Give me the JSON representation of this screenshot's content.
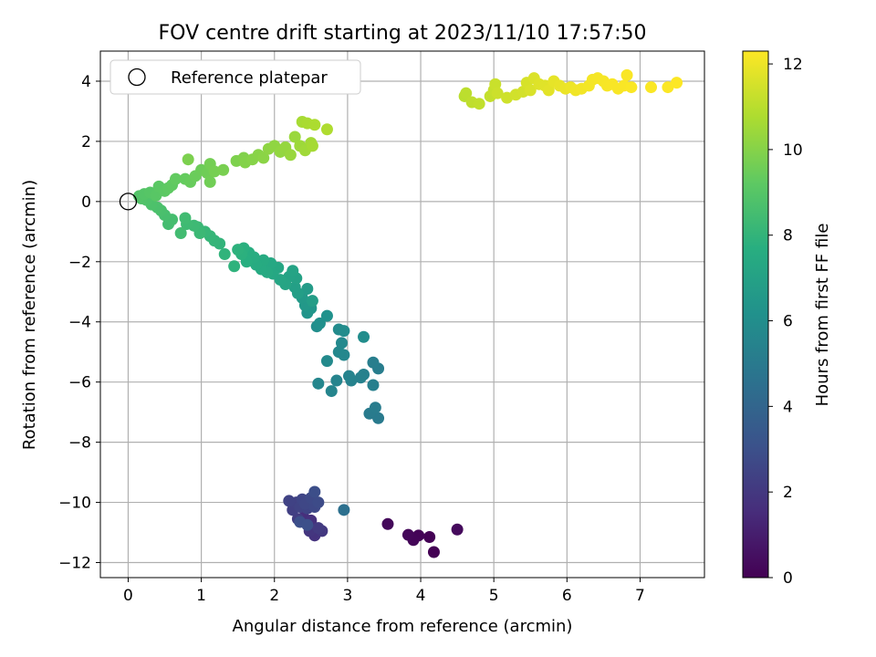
{
  "chart_data": {
    "type": "scatter",
    "title": "FOV centre drift starting at 2023/11/10 17:57:50",
    "xlabel": "Angular distance from reference (arcmin)",
    "ylabel": "Rotation from reference (arcmin)",
    "xlim": [
      -0.38,
      7.88
    ],
    "ylim": [
      -12.5,
      5.0
    ],
    "xticks": [
      "0",
      "1",
      "2",
      "3",
      "4",
      "5",
      "6",
      "7"
    ],
    "yticks": [
      "4",
      "2",
      "0",
      "−2",
      "−4",
      "−6",
      "−8",
      "−10",
      "−12"
    ],
    "grid": true,
    "legend": {
      "location": "upper-left",
      "entries": [
        "Reference platepar"
      ]
    },
    "reference_point": {
      "x": 0.0,
      "y": 0.0,
      "marker": "open-circle"
    },
    "colorbar": {
      "label": "Hours from first FF file",
      "range": [
        0,
        12.3
      ],
      "ticks": [
        "0",
        "2",
        "4",
        "6",
        "8",
        "10",
        "12"
      ],
      "colormap": "viridis"
    },
    "series": [
      {
        "points": [
          [
            4.18,
            -11.65,
            0.0
          ],
          [
            4.12,
            -11.15,
            0.05
          ],
          [
            3.97,
            -11.1,
            0.1
          ],
          [
            3.9,
            -11.25,
            0.15
          ],
          [
            3.83,
            -11.08,
            0.2
          ],
          [
            3.55,
            -10.72,
            0.25
          ],
          [
            4.5,
            -10.9,
            0.3
          ],
          [
            2.4,
            -10.5,
            1.6
          ],
          [
            2.5,
            -10.6,
            1.7
          ],
          [
            2.55,
            -11.1,
            1.8
          ],
          [
            2.48,
            -10.95,
            1.9
          ],
          [
            2.65,
            -10.95,
            2.0
          ],
          [
            2.6,
            -10.85,
            2.1
          ],
          [
            2.32,
            -10.55,
            2.2
          ],
          [
            2.25,
            -10.25,
            2.3
          ],
          [
            2.3,
            -10.0,
            2.35
          ],
          [
            2.2,
            -9.95,
            2.4
          ],
          [
            2.35,
            -10.15,
            2.45
          ],
          [
            2.45,
            -10.2,
            2.5
          ],
          [
            2.38,
            -9.9,
            2.55
          ],
          [
            2.42,
            -10.05,
            2.6
          ],
          [
            2.55,
            -10.15,
            2.65
          ],
          [
            2.5,
            -9.85,
            2.7
          ],
          [
            2.6,
            -10.0,
            2.8
          ],
          [
            2.55,
            -9.65,
            2.9
          ],
          [
            2.35,
            -10.65,
            2.95
          ],
          [
            2.45,
            -10.75,
            3.0
          ],
          [
            2.95,
            -10.25,
            4.5
          ],
          [
            3.42,
            -7.2,
            5.0
          ],
          [
            3.3,
            -7.05,
            5.05
          ],
          [
            3.38,
            -6.85,
            5.1
          ],
          [
            3.42,
            -5.55,
            5.15
          ],
          [
            3.35,
            -5.35,
            5.2
          ],
          [
            3.35,
            -6.1,
            5.25
          ],
          [
            3.22,
            -5.75,
            5.3
          ],
          [
            3.18,
            -5.85,
            5.35
          ],
          [
            3.05,
            -5.95,
            5.4
          ],
          [
            3.02,
            -5.8,
            5.45
          ],
          [
            2.85,
            -5.95,
            5.5
          ],
          [
            2.78,
            -6.3,
            5.55
          ],
          [
            2.6,
            -6.05,
            5.6
          ],
          [
            2.95,
            -5.1,
            5.65
          ],
          [
            2.88,
            -5.0,
            5.7
          ],
          [
            2.92,
            -4.7,
            5.75
          ],
          [
            2.72,
            -5.3,
            5.8
          ],
          [
            2.88,
            -4.25,
            5.85
          ],
          [
            2.95,
            -4.3,
            5.9
          ],
          [
            3.22,
            -4.5,
            5.95
          ],
          [
            2.58,
            -4.15,
            6.0
          ],
          [
            2.62,
            -4.05,
            6.1
          ],
          [
            2.72,
            -3.8,
            6.2
          ],
          [
            2.45,
            -3.7,
            6.3
          ],
          [
            2.5,
            -3.55,
            6.4
          ],
          [
            2.42,
            -3.45,
            6.5
          ],
          [
            2.38,
            -3.2,
            6.6
          ],
          [
            2.45,
            -2.9,
            6.7
          ],
          [
            2.52,
            -3.3,
            6.8
          ],
          [
            2.32,
            -3.05,
            6.85
          ],
          [
            2.28,
            -2.85,
            6.9
          ],
          [
            2.3,
            -2.55,
            7.0
          ],
          [
            2.2,
            -2.5,
            7.05
          ],
          [
            2.25,
            -2.3,
            7.1
          ],
          [
            2.15,
            -2.75,
            7.15
          ],
          [
            2.08,
            -2.6,
            7.2
          ],
          [
            2.05,
            -2.2,
            7.25
          ],
          [
            1.98,
            -2.4,
            7.3
          ],
          [
            1.95,
            -2.05,
            7.35
          ],
          [
            1.9,
            -2.35,
            7.4
          ],
          [
            1.82,
            -2.25,
            7.45
          ],
          [
            1.85,
            -1.95,
            7.5
          ],
          [
            1.75,
            -2.1,
            7.55
          ],
          [
            1.72,
            -1.85,
            7.6
          ],
          [
            1.65,
            -1.7,
            7.65
          ],
          [
            1.62,
            -2.0,
            7.7
          ],
          [
            1.58,
            -1.55,
            7.75
          ],
          [
            1.55,
            -1.75,
            7.8
          ],
          [
            1.5,
            -1.6,
            7.85
          ],
          [
            1.45,
            -2.15,
            7.9
          ],
          [
            1.32,
            -1.75,
            7.95
          ],
          [
            1.25,
            -1.4,
            8.0
          ],
          [
            1.18,
            -1.3,
            8.05
          ],
          [
            1.12,
            -1.15,
            8.1
          ],
          [
            1.05,
            -1.0,
            8.15
          ],
          [
            0.95,
            -0.85,
            8.2
          ],
          [
            0.98,
            -1.05,
            8.25
          ],
          [
            0.9,
            -0.8,
            8.3
          ],
          [
            0.8,
            -0.75,
            8.35
          ],
          [
            0.78,
            -0.55,
            8.4
          ],
          [
            0.72,
            -1.05,
            8.45
          ],
          [
            0.55,
            -0.75,
            8.5
          ],
          [
            0.6,
            -0.6,
            8.55
          ],
          [
            0.5,
            -0.45,
            8.6
          ],
          [
            0.45,
            -0.3,
            8.65
          ],
          [
            0.4,
            -0.2,
            8.7
          ],
          [
            0.32,
            -0.1,
            8.75
          ],
          [
            0.25,
            0.05,
            8.8
          ],
          [
            0.18,
            0.1,
            8.85
          ],
          [
            0.15,
            0.18,
            8.9
          ],
          [
            0.22,
            0.25,
            8.95
          ],
          [
            0.3,
            0.3,
            9.0
          ],
          [
            0.38,
            0.2,
            9.05
          ],
          [
            0.42,
            0.5,
            9.1
          ],
          [
            0.5,
            0.35,
            9.15
          ],
          [
            0.55,
            0.45,
            9.2
          ],
          [
            0.6,
            0.55,
            9.25
          ],
          [
            0.65,
            0.75,
            9.3
          ],
          [
            0.78,
            0.75,
            9.35
          ],
          [
            0.85,
            0.65,
            9.4
          ],
          [
            0.92,
            0.85,
            9.45
          ],
          [
            1.0,
            1.05,
            9.5
          ],
          [
            1.08,
            0.95,
            9.55
          ],
          [
            1.12,
            0.65,
            9.6
          ],
          [
            1.12,
            1.25,
            9.65
          ],
          [
            1.18,
            1.0,
            9.7
          ],
          [
            1.3,
            1.05,
            9.75
          ],
          [
            0.82,
            1.4,
            9.8
          ],
          [
            1.48,
            1.35,
            9.85
          ],
          [
            1.58,
            1.45,
            9.9
          ],
          [
            1.6,
            1.3,
            9.95
          ],
          [
            1.7,
            1.4,
            10.0
          ],
          [
            1.78,
            1.55,
            10.05
          ],
          [
            1.85,
            1.45,
            10.1
          ],
          [
            1.92,
            1.75,
            10.15
          ],
          [
            2.0,
            1.85,
            10.2
          ],
          [
            2.08,
            1.65,
            10.25
          ],
          [
            2.15,
            1.8,
            10.3
          ],
          [
            2.22,
            1.55,
            10.35
          ],
          [
            2.28,
            2.15,
            10.4
          ],
          [
            2.35,
            1.85,
            10.45
          ],
          [
            2.42,
            1.7,
            10.5
          ],
          [
            2.5,
            1.95,
            10.55
          ],
          [
            2.52,
            1.85,
            10.6
          ],
          [
            2.38,
            2.65,
            10.65
          ],
          [
            2.45,
            2.6,
            10.7
          ],
          [
            2.55,
            2.55,
            10.75
          ],
          [
            2.72,
            2.4,
            10.8
          ],
          [
            4.6,
            3.5,
            11.0
          ],
          [
            4.62,
            3.6,
            11.05
          ],
          [
            4.7,
            3.3,
            11.1
          ],
          [
            4.8,
            3.25,
            11.15
          ],
          [
            4.95,
            3.5,
            11.2
          ],
          [
            5.0,
            3.7,
            11.25
          ],
          [
            5.02,
            3.9,
            11.3
          ],
          [
            5.05,
            3.6,
            11.35
          ],
          [
            5.18,
            3.45,
            11.4
          ],
          [
            5.3,
            3.55,
            11.45
          ],
          [
            5.4,
            3.65,
            11.5
          ],
          [
            5.45,
            3.95,
            11.55
          ],
          [
            5.5,
            3.7,
            11.6
          ],
          [
            5.55,
            4.1,
            11.65
          ],
          [
            5.62,
            3.9,
            11.7
          ],
          [
            5.7,
            3.85,
            11.75
          ],
          [
            5.75,
            3.7,
            11.8
          ],
          [
            5.82,
            4.0,
            11.85
          ],
          [
            5.9,
            3.85,
            11.9
          ],
          [
            5.98,
            3.75,
            11.95
          ],
          [
            6.05,
            3.8,
            12.0
          ],
          [
            6.12,
            3.7,
            12.05
          ],
          [
            6.2,
            3.75,
            12.08
          ],
          [
            6.3,
            3.85,
            12.1
          ],
          [
            6.35,
            4.05,
            12.12
          ],
          [
            6.42,
            4.1,
            12.15
          ],
          [
            6.5,
            4.0,
            12.17
          ],
          [
            6.55,
            3.85,
            12.19
          ],
          [
            6.62,
            3.9,
            12.2
          ],
          [
            6.7,
            3.75,
            12.21
          ],
          [
            6.78,
            3.85,
            12.22
          ],
          [
            6.82,
            4.2,
            12.23
          ],
          [
            6.88,
            3.8,
            12.24
          ],
          [
            7.15,
            3.8,
            12.25
          ],
          [
            7.38,
            3.8,
            12.26
          ],
          [
            7.5,
            3.95,
            12.28
          ]
        ]
      }
    ]
  }
}
